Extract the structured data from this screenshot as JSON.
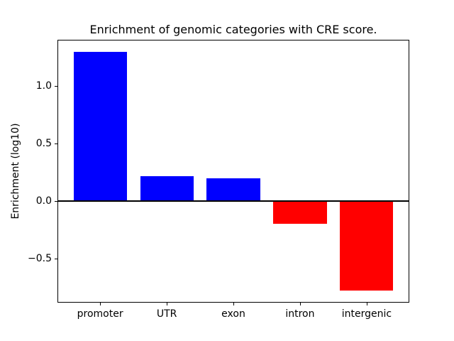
{
  "chart_data": {
    "type": "bar",
    "title": "Enrichment of genomic categories with CRE score.",
    "ylabel": "Enrichment (log10)",
    "xlabel": "",
    "categories": [
      "promoter",
      "UTR",
      "exon",
      "intron",
      "intergenic"
    ],
    "values": [
      1.3,
      0.22,
      0.2,
      -0.2,
      -0.78
    ],
    "bar_colors": [
      "#0000ff",
      "#0000ff",
      "#0000ff",
      "#ff0000",
      "#ff0000"
    ],
    "positive_color": "#0000ff",
    "negative_color": "#ff0000",
    "yticks": [
      {
        "value": 1.0,
        "label": "1.0"
      },
      {
        "value": 0.5,
        "label": "0.5"
      },
      {
        "value": 0.0,
        "label": "0.0"
      },
      {
        "value": -0.5,
        "label": "−0.5"
      }
    ],
    "ylim": [
      -0.884,
      1.404
    ],
    "xlim": [
      -0.64,
      4.64
    ],
    "bar_width": 0.8,
    "zero_line_value": 0.0,
    "grid": false,
    "legend_position": "none",
    "background_color": "#ffffff",
    "axis_color": "#000000",
    "text_color": "#000000"
  }
}
